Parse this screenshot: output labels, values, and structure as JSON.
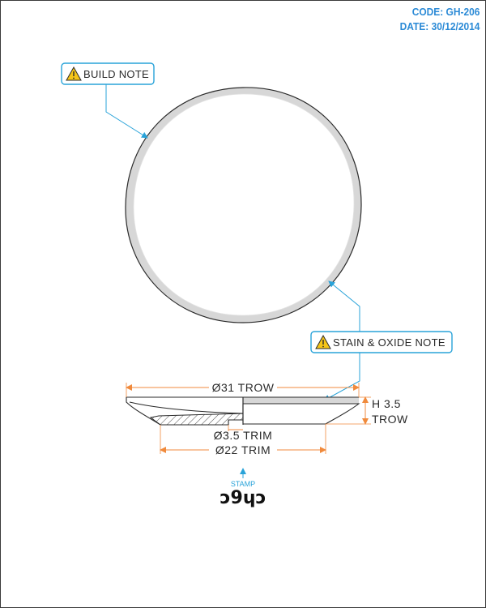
{
  "meta": {
    "code": "CODE: GH-206",
    "date": "DATE: 30/12/2014"
  },
  "callouts": {
    "build_note": "BUILD NOTE",
    "stain_note": "STAIN & OXIDE NOTE"
  },
  "dimensions": {
    "overall_diameter": "Ø31 TROW",
    "height": "H 3.5",
    "height_unit": "TROW",
    "foot_diameter_small": "Ø3.5 TRIM",
    "foot_diameter": "Ø22 TRIM"
  },
  "stamp": {
    "label": "STAMP",
    "glyphs": "ɔ9ɥɔ"
  },
  "colors": {
    "accent": "#2b8ad6",
    "leader": "#29a3d9",
    "dimension": "#f08a3c",
    "outline": "#2a2a2a",
    "rim": "#d7d7d7"
  }
}
